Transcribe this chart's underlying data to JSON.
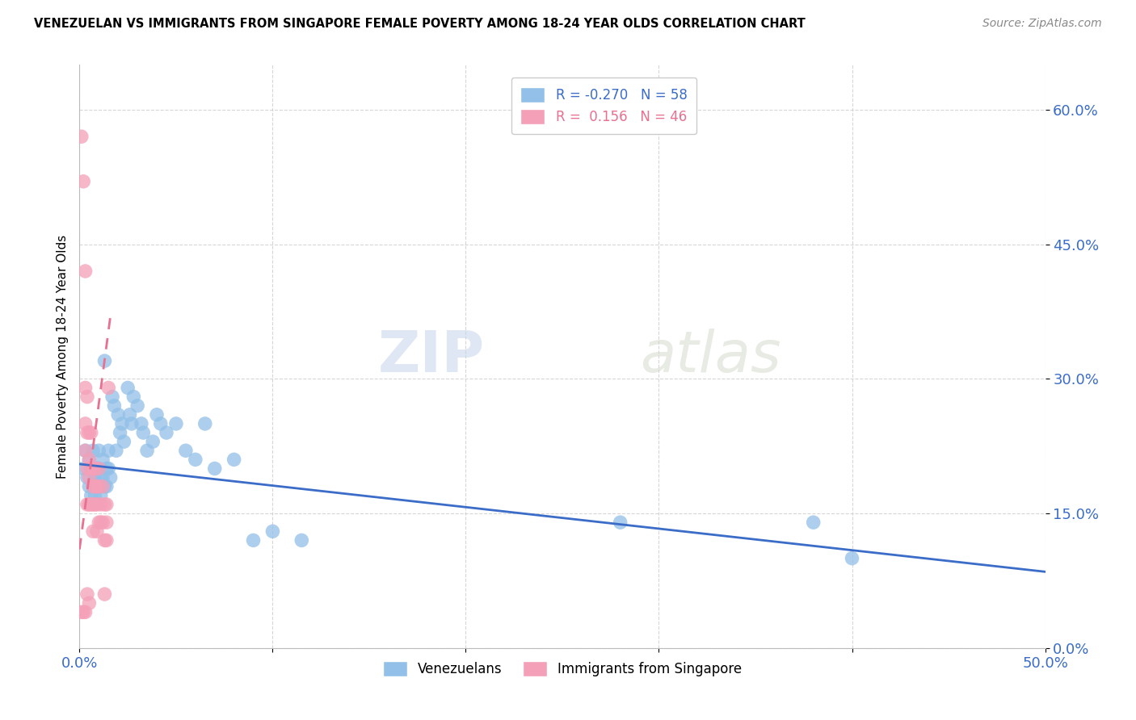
{
  "title": "VENEZUELAN VS IMMIGRANTS FROM SINGAPORE FEMALE POVERTY AMONG 18-24 YEAR OLDS CORRELATION CHART",
  "source": "Source: ZipAtlas.com",
  "ylabel": "Female Poverty Among 18-24 Year Olds",
  "x_min": 0.0,
  "x_max": 0.5,
  "y_min": 0.0,
  "y_max": 0.65,
  "y_ticks": [
    0.0,
    0.15,
    0.3,
    0.45,
    0.6
  ],
  "y_tick_labels": [
    "0.0%",
    "15.0%",
    "30.0%",
    "45.0%",
    "60.0%"
  ],
  "watermark_zip": "ZIP",
  "watermark_atlas": "atlas",
  "legend_blue_R": "-0.270",
  "legend_blue_N": "58",
  "legend_pink_R": "0.156",
  "legend_pink_N": "46",
  "blue_color": "#92C0E8",
  "pink_color": "#F4A0B8",
  "blue_line_color": "#3A6CC8",
  "pink_line_color": "#E87090",
  "grid_color": "#CCCCCC",
  "blue_scatter_x": [
    0.002,
    0.003,
    0.004,
    0.005,
    0.005,
    0.006,
    0.006,
    0.007,
    0.007,
    0.008,
    0.008,
    0.009,
    0.009,
    0.01,
    0.01,
    0.01,
    0.011,
    0.011,
    0.012,
    0.012,
    0.013,
    0.013,
    0.014,
    0.014,
    0.015,
    0.015,
    0.016,
    0.017,
    0.018,
    0.019,
    0.02,
    0.021,
    0.022,
    0.023,
    0.025,
    0.026,
    0.027,
    0.028,
    0.03,
    0.032,
    0.033,
    0.035,
    0.038,
    0.04,
    0.042,
    0.045,
    0.05,
    0.055,
    0.06,
    0.065,
    0.07,
    0.08,
    0.09,
    0.1,
    0.115,
    0.28,
    0.38,
    0.4
  ],
  "blue_scatter_y": [
    0.2,
    0.22,
    0.19,
    0.18,
    0.21,
    0.17,
    0.2,
    0.18,
    0.22,
    0.19,
    0.17,
    0.2,
    0.18,
    0.22,
    0.2,
    0.18,
    0.19,
    0.17,
    0.21,
    0.19,
    0.32,
    0.18,
    0.2,
    0.18,
    0.22,
    0.2,
    0.19,
    0.28,
    0.27,
    0.22,
    0.26,
    0.24,
    0.25,
    0.23,
    0.29,
    0.26,
    0.25,
    0.28,
    0.27,
    0.25,
    0.24,
    0.22,
    0.23,
    0.26,
    0.25,
    0.24,
    0.25,
    0.22,
    0.21,
    0.25,
    0.2,
    0.21,
    0.12,
    0.13,
    0.12,
    0.14,
    0.14,
    0.1
  ],
  "pink_scatter_x": [
    0.001,
    0.001,
    0.002,
    0.002,
    0.003,
    0.003,
    0.003,
    0.003,
    0.003,
    0.004,
    0.004,
    0.004,
    0.004,
    0.004,
    0.005,
    0.005,
    0.005,
    0.005,
    0.005,
    0.006,
    0.006,
    0.006,
    0.007,
    0.007,
    0.007,
    0.007,
    0.008,
    0.008,
    0.008,
    0.009,
    0.009,
    0.009,
    0.01,
    0.01,
    0.01,
    0.011,
    0.011,
    0.012,
    0.012,
    0.013,
    0.013,
    0.013,
    0.014,
    0.014,
    0.014,
    0.015
  ],
  "pink_scatter_y": [
    0.57,
    0.04,
    0.52,
    0.04,
    0.42,
    0.29,
    0.25,
    0.22,
    0.04,
    0.28,
    0.24,
    0.2,
    0.16,
    0.06,
    0.24,
    0.21,
    0.19,
    0.16,
    0.05,
    0.24,
    0.2,
    0.16,
    0.2,
    0.18,
    0.16,
    0.13,
    0.2,
    0.18,
    0.16,
    0.18,
    0.16,
    0.13,
    0.2,
    0.18,
    0.14,
    0.16,
    0.14,
    0.18,
    0.14,
    0.16,
    0.12,
    0.06,
    0.16,
    0.14,
    0.12,
    0.29
  ],
  "blue_trend_x0": 0.0,
  "blue_trend_x1": 0.5,
  "blue_trend_y0": 0.205,
  "blue_trend_y1": 0.085,
  "pink_trend_x0": 0.0,
  "pink_trend_x1": 0.016,
  "pink_trend_y0": 0.11,
  "pink_trend_y1": 0.37
}
